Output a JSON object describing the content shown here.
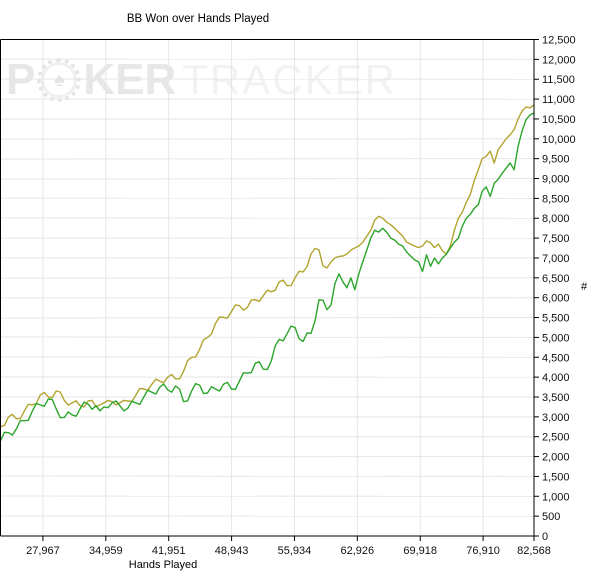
{
  "watermark": {
    "part1": "P",
    "chip_symbol": "♠",
    "part2": "KER",
    "part3": "TRACKER"
  },
  "colors": {
    "background": "#ffffff",
    "grid": "#e6e6e6",
    "axis": "#000000",
    "tick_text": "#111111",
    "series_olive": "#b1a42e",
    "series_green": "#2ba52b",
    "watermark_bold": "#e7e7e7",
    "watermark_light": "#f2f2f2"
  },
  "chart_data": {
    "type": "line",
    "title": "BB Won over Hands Played",
    "xlabel": "Hands Played",
    "ylabel": "#",
    "grid": true,
    "legend_position": "none",
    "x_axis": {
      "min": 23250,
      "max": 82568,
      "ticks": [
        {
          "value": 27967,
          "label": "27,967"
        },
        {
          "value": 34959,
          "label": "34,959"
        },
        {
          "value": 41951,
          "label": "41,951"
        },
        {
          "value": 48943,
          "label": "48,943"
        },
        {
          "value": 55934,
          "label": "55,934"
        },
        {
          "value": 62926,
          "label": "62,926"
        },
        {
          "value": 69918,
          "label": "69,918"
        },
        {
          "value": 76910,
          "label": "76,910"
        },
        {
          "value": 82568,
          "label": "82,568"
        }
      ]
    },
    "y_axis": {
      "min": 0,
      "max": 12500,
      "tick_step": 500,
      "ticks": [
        {
          "value": 0,
          "label": "0"
        },
        {
          "value": 500,
          "label": "500"
        },
        {
          "value": 1000,
          "label": "1,000"
        },
        {
          "value": 1500,
          "label": "1,500"
        },
        {
          "value": 2000,
          "label": "2,000"
        },
        {
          "value": 2500,
          "label": "2,500"
        },
        {
          "value": 3000,
          "label": "3,000"
        },
        {
          "value": 3500,
          "label": "3,500"
        },
        {
          "value": 4000,
          "label": "4,000"
        },
        {
          "value": 4500,
          "label": "4,500"
        },
        {
          "value": 5000,
          "label": "5,000"
        },
        {
          "value": 5500,
          "label": "5,500"
        },
        {
          "value": 6000,
          "label": "6,000"
        },
        {
          "value": 6500,
          "label": "6,500"
        },
        {
          "value": 7000,
          "label": "7,000"
        },
        {
          "value": 7500,
          "label": "7,500"
        },
        {
          "value": 8000,
          "label": "8,000"
        },
        {
          "value": 8500,
          "label": "8,500"
        },
        {
          "value": 9000,
          "label": "9,000"
        },
        {
          "value": 9500,
          "label": "9,500"
        },
        {
          "value": 10000,
          "label": "10,000"
        },
        {
          "value": 10500,
          "label": "10,500"
        },
        {
          "value": 11000,
          "label": "11,000"
        },
        {
          "value": 11500,
          "label": "11,500"
        },
        {
          "value": 12000,
          "label": "12,000"
        },
        {
          "value": 12500,
          "label": "12,500"
        }
      ]
    },
    "series_x_even_from": 23250,
    "series_x_even_to": 82568,
    "series": [
      {
        "name": "olive-line",
        "color": "#b1a42e",
        "values": [
          2750,
          2785,
          3000,
          3065,
          2950,
          2960,
          3150,
          3315,
          3300,
          3335,
          3550,
          3615,
          3500,
          3485,
          3650,
          3625,
          3420,
          3295,
          3350,
          3405,
          3280,
          3250,
          3400,
          3415,
          3250,
          3300,
          3350,
          3415,
          3380,
          3300,
          3350,
          3415,
          3400,
          3385,
          3550,
          3715,
          3700,
          3670,
          3820,
          3950,
          3900,
          3860,
          4000,
          4065,
          3950,
          3960,
          4150,
          4415,
          4500,
          4510,
          4700,
          4940,
          5000,
          5085,
          5350,
          5515,
          5500,
          5485,
          5650,
          5815,
          5800,
          5685,
          5750,
          5940,
          5950,
          5910,
          6050,
          6190,
          6150,
          6185,
          6400,
          6440,
          6300,
          6310,
          6500,
          6665,
          6650,
          6785,
          7100,
          7240,
          7200,
          6800,
          6750,
          6900,
          7000,
          7040,
          7050,
          7100,
          7200,
          7250,
          7300,
          7400,
          7550,
          7700,
          7950,
          8050,
          8000,
          7900,
          7835,
          7750,
          7650,
          7550,
          7400,
          7350,
          7300,
          7260,
          7300,
          7430,
          7380,
          7260,
          7350,
          7180,
          7100,
          7300,
          7700,
          8000,
          8150,
          8400,
          8600,
          8950,
          9220,
          9500,
          9560,
          9690,
          9390,
          9730,
          9860,
          10000,
          10100,
          10230,
          10500,
          10700,
          10800,
          10780,
          10850
        ]
      },
      {
        "name": "green-line",
        "color": "#2ba52b",
        "values": [
          2400,
          2610,
          2600,
          2540,
          2700,
          2910,
          2900,
          2915,
          3150,
          3335,
          3300,
          3265,
          3450,
          3435,
          3200,
          2980,
          2980,
          3125,
          3050,
          3015,
          3200,
          3370,
          3320,
          3190,
          3280,
          3150,
          3250,
          3230,
          3350,
          3400,
          3280,
          3150,
          3220,
          3395,
          3350,
          3315,
          3500,
          3670,
          3620,
          3575,
          3750,
          3825,
          3680,
          3620,
          3780,
          3690,
          3380,
          3405,
          3650,
          3835,
          3800,
          3590,
          3600,
          3760,
          3700,
          3650,
          3820,
          3870,
          3700,
          3690,
          3900,
          4110,
          4100,
          4115,
          4350,
          4385,
          4200,
          4190,
          4400,
          4785,
          4950,
          4915,
          5100,
          5285,
          5250,
          4965,
          4900,
          5110,
          5100,
          5415,
          5950,
          5935,
          5700,
          5815,
          6350,
          6600,
          6400,
          6250,
          6500,
          6200,
          6600,
          6900,
          7200,
          7500,
          7700,
          7650,
          7750,
          7650,
          7500,
          7450,
          7350,
          7300,
          7150,
          7050,
          6950,
          6900,
          6660,
          7080,
          6790,
          7000,
          6850,
          7000,
          7100,
          7250,
          7400,
          7500,
          7800,
          8000,
          8100,
          8250,
          8340,
          8680,
          8790,
          8550,
          8880,
          8980,
          9130,
          9260,
          9390,
          9220,
          9810,
          10200,
          10480,
          10600,
          10650
        ]
      }
    ]
  }
}
